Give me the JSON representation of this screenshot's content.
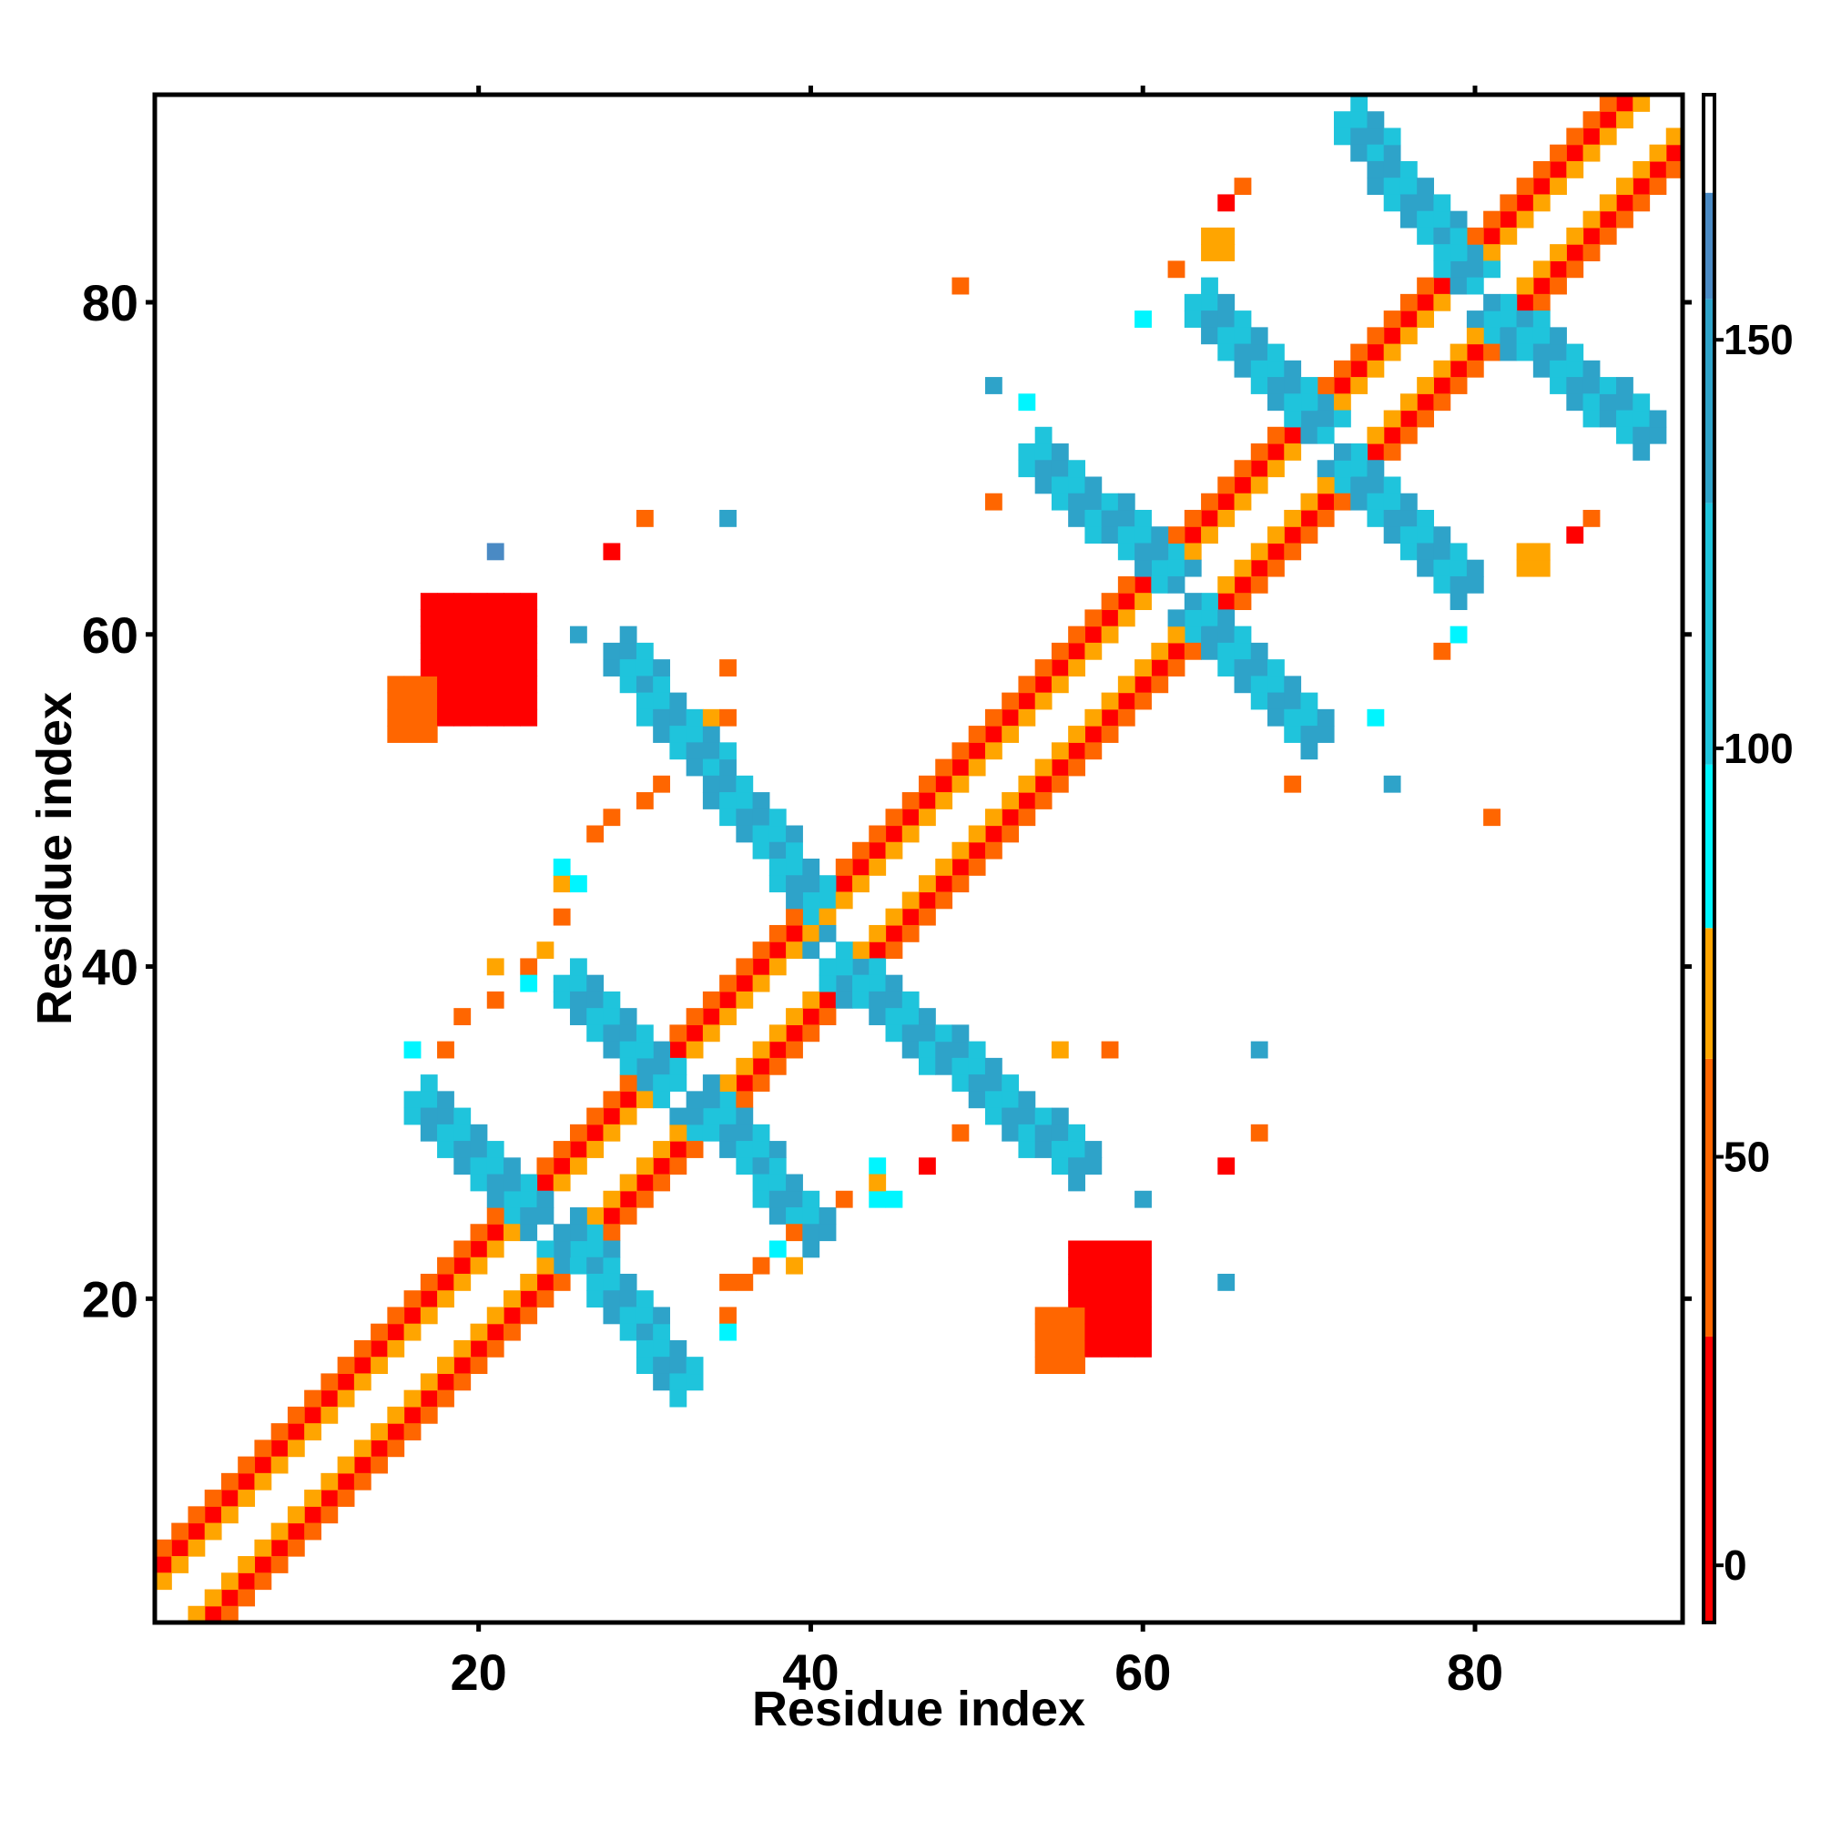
{
  "chart_data": {
    "type": "heatmap",
    "title": "",
    "xlabel": "Residue index",
    "ylabel": "Residue index",
    "xlim": [
      1,
      92
    ],
    "ylim": [
      1,
      92
    ],
    "x_ticks": [
      20,
      40,
      60,
      80
    ],
    "y_ticks": [
      20,
      40,
      60,
      80
    ],
    "colorbar": {
      "ticks": [
        0,
        50,
        100,
        150
      ],
      "range": [
        -7,
        180
      ],
      "bands": [
        {
          "from": -7,
          "to": 28,
          "color": "#ff0000"
        },
        {
          "from": 28,
          "to": 62,
          "color": "#ff6600"
        },
        {
          "from": 62,
          "to": 78,
          "color": "#ffa500"
        },
        {
          "from": 78,
          "to": 98,
          "color": "#00f5ff"
        },
        {
          "from": 98,
          "to": 130,
          "color": "#1fc4dc"
        },
        {
          "from": 130,
          "to": 155,
          "color": "#2ea3c9"
        },
        {
          "from": 155,
          "to": 168,
          "color": "#4a8ac4"
        },
        {
          "from": 168,
          "to": 180,
          "color": "#ffffff"
        }
      ]
    },
    "cell_values": {
      "red": 10,
      "orange_red": 45,
      "orange": 70,
      "cyan": 90,
      "light_blue": 115,
      "steel_blue": 145,
      "slate_blue": 160
    },
    "diagonal_bands": [
      {
        "x_start": 1,
        "y_start": 4,
        "length": 89,
        "step": 1,
        "value": 10
      },
      {
        "x_start": 4,
        "y_start": 1,
        "length": 89,
        "step": 1,
        "value": 10
      },
      {
        "x_start": 1,
        "y_start": 5,
        "length": 88,
        "step": 1,
        "value": 45
      },
      {
        "x_start": 5,
        "y_start": 1,
        "length": 88,
        "step": 1,
        "value": 45
      },
      {
        "x_start": 1,
        "y_start": 3,
        "length": 90,
        "step": 1,
        "value": 70
      },
      {
        "x_start": 3,
        "y_start": 1,
        "length": 90,
        "step": 1,
        "value": 70
      }
    ],
    "anti_diagonal_bands": [
      {
        "x_from": 16,
        "y_from": 32,
        "x_to": 25,
        "y_to": 23,
        "values": [
          115,
          145
        ]
      },
      {
        "x_from": 25,
        "y_from": 24,
        "x_to": 32,
        "y_to": 15,
        "values": [
          145,
          115
        ]
      },
      {
        "x_from": 25,
        "y_from": 39,
        "x_to": 33,
        "y_to": 31,
        "values": [
          115,
          145
        ]
      },
      {
        "x_from": 33,
        "y_from": 32,
        "x_to": 40,
        "y_to": 24,
        "values": [
          145,
          115
        ]
      },
      {
        "x_from": 28,
        "y_from": 59,
        "x_to": 40,
        "y_to": 44,
        "values": [
          145,
          115
        ]
      },
      {
        "x_from": 40,
        "y_from": 41,
        "x_to": 56,
        "y_to": 28,
        "values": [
          145,
          115
        ]
      },
      {
        "x_from": 53,
        "y_from": 71,
        "x_to": 62,
        "y_to": 63,
        "values": [
          115,
          145
        ]
      },
      {
        "x_from": 62,
        "y_from": 62,
        "x_to": 70,
        "y_to": 54,
        "values": [
          145,
          115
        ]
      },
      {
        "x_from": 63,
        "y_from": 80,
        "x_to": 71,
        "y_to": 72,
        "values": [
          115,
          145
        ]
      },
      {
        "x_from": 71,
        "y_from": 71,
        "x_to": 79,
        "y_to": 63,
        "values": [
          145,
          115
        ]
      },
      {
        "x_from": 72,
        "y_from": 91,
        "x_to": 80,
        "y_to": 81,
        "values": [
          115,
          145
        ]
      },
      {
        "x_from": 80,
        "y_from": 80,
        "x_to": 90,
        "y_to": 72,
        "values": [
          145,
          115
        ]
      }
    ],
    "patches": [
      {
        "x": [
          17,
          23
        ],
        "y": [
          55,
          62
        ],
        "value": 10
      },
      {
        "x": [
          56,
          60
        ],
        "y": [
          17,
          23
        ],
        "value": 10
      },
      {
        "x": [
          15,
          17
        ],
        "y": [
          54,
          57
        ],
        "value": 45
      },
      {
        "x": [
          54,
          56
        ],
        "y": [
          16,
          19
        ],
        "value": 45
      },
      {
        "x": [
          64,
          65
        ],
        "y": [
          83,
          84
        ],
        "value": 70
      },
      {
        "x": [
          83,
          84
        ],
        "y": [
          64,
          65
        ],
        "value": 70
      }
    ],
    "scatter_cells": [
      {
        "x": 21,
        "y": 65,
        "value": 160
      },
      {
        "x": 35,
        "y": 67,
        "value": 145
      },
      {
        "x": 28,
        "y": 65,
        "value": 10
      },
      {
        "x": 30,
        "y": 67,
        "value": 45
      },
      {
        "x": 26,
        "y": 60,
        "value": 145
      },
      {
        "x": 35,
        "y": 58,
        "value": 45
      },
      {
        "x": 49,
        "y": 81,
        "value": 45
      },
      {
        "x": 51,
        "y": 75,
        "value": 145
      },
      {
        "x": 53,
        "y": 74,
        "value": 90
      },
      {
        "x": 51,
        "y": 68,
        "value": 45
      },
      {
        "x": 60,
        "y": 79,
        "value": 90
      },
      {
        "x": 62,
        "y": 82,
        "value": 45
      },
      {
        "x": 65,
        "y": 86,
        "value": 10
      },
      {
        "x": 66,
        "y": 87,
        "value": 45
      },
      {
        "x": 79,
        "y": 60,
        "value": 90
      },
      {
        "x": 74,
        "y": 55,
        "value": 90
      },
      {
        "x": 75,
        "y": 51,
        "value": 145
      },
      {
        "x": 69,
        "y": 51,
        "value": 45
      },
      {
        "x": 81,
        "y": 49,
        "value": 45
      },
      {
        "x": 86,
        "y": 66,
        "value": 10
      },
      {
        "x": 87,
        "y": 67,
        "value": 45
      },
      {
        "x": 78,
        "y": 59,
        "value": 45
      },
      {
        "x": 67,
        "y": 35,
        "value": 145
      },
      {
        "x": 67,
        "y": 30,
        "value": 45
      },
      {
        "x": 65,
        "y": 28,
        "value": 10
      },
      {
        "x": 60,
        "y": 26,
        "value": 145
      },
      {
        "x": 65,
        "y": 21,
        "value": 145
      },
      {
        "x": 58,
        "y": 35,
        "value": 45
      },
      {
        "x": 55,
        "y": 35,
        "value": 70
      },
      {
        "x": 49,
        "y": 30,
        "value": 45
      },
      {
        "x": 47,
        "y": 28,
        "value": 10
      },
      {
        "x": 44,
        "y": 26,
        "value": 90
      },
      {
        "x": 45,
        "y": 26,
        "value": 90
      },
      {
        "x": 44,
        "y": 28,
        "value": 90
      },
      {
        "x": 44,
        "y": 27,
        "value": 70
      },
      {
        "x": 42,
        "y": 26,
        "value": 45
      },
      {
        "x": 39,
        "y": 24,
        "value": 45
      },
      {
        "x": 38,
        "y": 23,
        "value": 90
      },
      {
        "x": 37,
        "y": 22,
        "value": 45
      },
      {
        "x": 39,
        "y": 22,
        "value": 70
      },
      {
        "x": 35,
        "y": 19,
        "value": 45
      },
      {
        "x": 35,
        "y": 18,
        "value": 90
      },
      {
        "x": 35,
        "y": 21,
        "value": 45
      },
      {
        "x": 36,
        "y": 21,
        "value": 45
      },
      {
        "x": 16,
        "y": 35,
        "value": 90
      },
      {
        "x": 18,
        "y": 35,
        "value": 45
      },
      {
        "x": 19,
        "y": 37,
        "value": 45
      },
      {
        "x": 21,
        "y": 38,
        "value": 45
      },
      {
        "x": 21,
        "y": 40,
        "value": 70
      },
      {
        "x": 23,
        "y": 40,
        "value": 45
      },
      {
        "x": 23,
        "y": 39,
        "value": 90
      },
      {
        "x": 24,
        "y": 41,
        "value": 70
      },
      {
        "x": 25,
        "y": 43,
        "value": 45
      },
      {
        "x": 25,
        "y": 45,
        "value": 70
      },
      {
        "x": 26,
        "y": 45,
        "value": 90
      },
      {
        "x": 25,
        "y": 46,
        "value": 90
      },
      {
        "x": 27,
        "y": 48,
        "value": 45
      },
      {
        "x": 28,
        "y": 49,
        "value": 45
      },
      {
        "x": 30,
        "y": 50,
        "value": 45
      },
      {
        "x": 31,
        "y": 51,
        "value": 45
      },
      {
        "x": 34,
        "y": 55,
        "value": 70
      },
      {
        "x": 35,
        "y": 55,
        "value": 45
      }
    ]
  }
}
